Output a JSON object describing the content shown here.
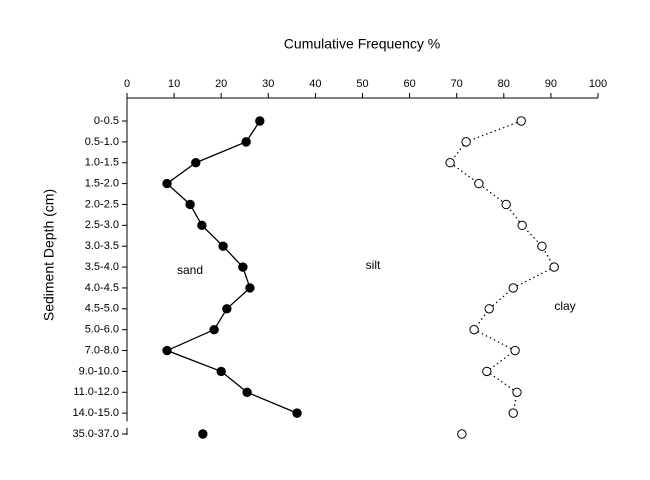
{
  "chart_data": {
    "type": "line",
    "title": "Cumulative Frequency %",
    "y_label": "Sediment Depth (cm)",
    "categories": [
      "0-0.5",
      "0.5-1.0",
      "1.0-1.5",
      "1.5-2.0",
      "2.0-2.5",
      "2.5-3.0",
      "3.0-3.5",
      "3.5-4.0",
      "4.0-4.5",
      "4.5-5.0",
      "5.0-6.0",
      "7.0-8.0",
      "9.0-10.0",
      "11.0-12.0",
      "14.0-15.0",
      "35.0-37.0"
    ],
    "axis_break_after_index": 14,
    "series": [
      {
        "name": "sand",
        "color": "#000000",
        "marker": "filled",
        "line": "solid",
        "values": [
          28.2,
          25.3,
          14.6,
          8.5,
          13.4,
          15.9,
          20.4,
          24.6,
          26.1,
          21.2,
          18.5,
          8.5,
          20.0,
          25.5,
          36.1,
          16.1
        ]
      },
      {
        "name": "clay",
        "color": "#000000",
        "marker": "open",
        "line": "dotted",
        "values": [
          83.7,
          72.0,
          68.6,
          74.7,
          80.5,
          83.9,
          88.1,
          90.7,
          82.0,
          76.9,
          73.7,
          82.4,
          76.4,
          82.8,
          82.0,
          71.1
        ]
      }
    ],
    "annotations": [
      "silt"
    ],
    "xlim": [
      0,
      100
    ],
    "xticks": [
      0,
      10,
      20,
      30,
      40,
      50,
      60,
      70,
      80,
      90,
      100
    ],
    "x_axis_position": "top",
    "grid": false
  }
}
